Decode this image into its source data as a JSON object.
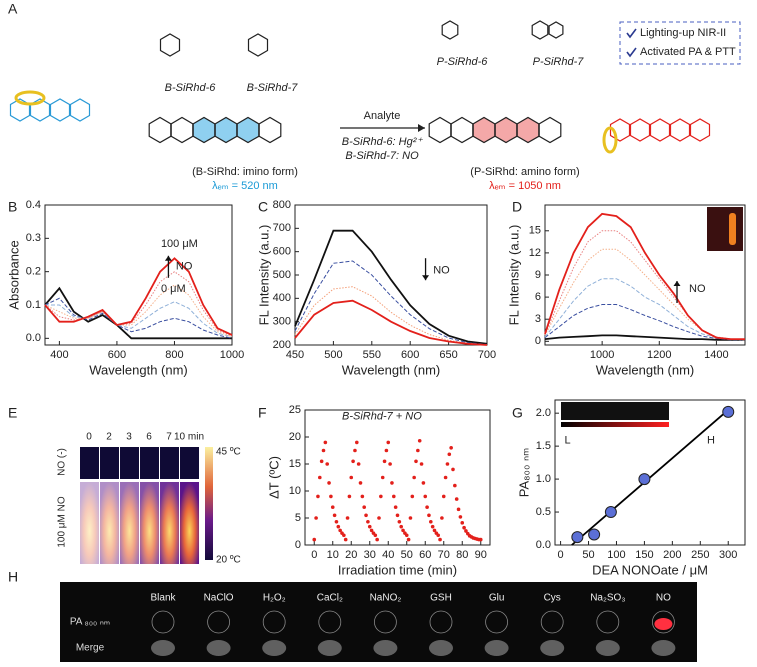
{
  "panel_labels": [
    "A",
    "B",
    "C",
    "D",
    "E",
    "F",
    "G",
    "H"
  ],
  "panel_a": {
    "compounds": [
      "B-SiRhd-6",
      "B-SiRhd-7",
      "P-SiRhd-6",
      "P-SiRhd-7"
    ],
    "features": [
      "Lighting-up NIR-II",
      "Activated PA & PTT"
    ],
    "left_form": "(B-SiRhd: imino form)",
    "left_emission": "λₑₘ = 520 nm",
    "arrow_label": "Analyte",
    "conditions": [
      "B-SiRhd-6: Hg²⁺",
      "B-SiRhd-7: NO"
    ],
    "right_form": "(P-SiRhd: amino form)",
    "right_emission": "λₑₘ = 1050 nm"
  },
  "panel_e": {
    "times": [
      "0",
      "2",
      "3",
      "6",
      "7",
      "10 min"
    ],
    "rows": [
      "NO (-)",
      "100 μM NO"
    ],
    "scale_max": "45 ºC",
    "scale_min": "20 ºC"
  },
  "panel_h": {
    "columns": [
      "Blank",
      "NaClO",
      "H₂O₂",
      "CaCl₂",
      "NaNO₂",
      "GSH",
      "Glu",
      "Cys",
      "Na₂SO₃",
      "NO"
    ],
    "rows": [
      "PA ₈₀₀ ₙₘ",
      "Merge"
    ]
  },
  "chart_data": [
    {
      "type": "line",
      "xlabel": "Wavelength (nm)",
      "ylabel": "Absorbance",
      "xlim": [
        350,
        1000
      ],
      "ylim": [
        -0.02,
        0.4
      ],
      "xticks": [
        400,
        600,
        800,
        1000
      ],
      "yticks": [
        {
          "value": 0,
          "label": "0.0"
        },
        0.1,
        0.2,
        0.3,
        0.4
      ],
      "annotations": [
        "100 μM",
        "NO",
        "0 μM"
      ],
      "x": [
        350,
        400,
        450,
        500,
        550,
        600,
        650,
        700,
        750,
        800,
        850,
        900,
        950,
        1000
      ],
      "series": [
        {
          "color": "#111111",
          "values": [
            0.1,
            0.15,
            0.08,
            0.05,
            0.07,
            0.04,
            0.0,
            0.0,
            0.0,
            0.0,
            0.0,
            0.0,
            0.0,
            0.0
          ]
        },
        {
          "color": "#3a4fa0",
          "style": "dashed",
          "values": [
            0.1,
            0.12,
            0.07,
            0.055,
            0.075,
            0.04,
            0.02,
            0.03,
            0.05,
            0.06,
            0.05,
            0.025,
            0.01,
            0.0
          ]
        },
        {
          "color": "#8fb0d8",
          "style": "dashed",
          "values": [
            0.1,
            0.1,
            0.065,
            0.06,
            0.08,
            0.04,
            0.03,
            0.06,
            0.09,
            0.11,
            0.09,
            0.045,
            0.015,
            0.005
          ]
        },
        {
          "color": "#f4b08a",
          "style": "dotted",
          "values": [
            0.1,
            0.08,
            0.06,
            0.06,
            0.08,
            0.04,
            0.04,
            0.08,
            0.13,
            0.16,
            0.13,
            0.065,
            0.02,
            0.005
          ]
        },
        {
          "color": "#e88080",
          "style": "dotted",
          "values": [
            0.1,
            0.065,
            0.055,
            0.062,
            0.082,
            0.04,
            0.045,
            0.1,
            0.17,
            0.2,
            0.17,
            0.085,
            0.025,
            0.008
          ]
        },
        {
          "color": "#e3201b",
          "values": [
            0.1,
            0.05,
            0.05,
            0.065,
            0.085,
            0.04,
            0.05,
            0.12,
            0.2,
            0.24,
            0.2,
            0.1,
            0.03,
            0.01
          ]
        }
      ]
    },
    {
      "type": "line",
      "xlabel": "Wavelength (nm)",
      "ylabel": "FL Intensity (a.u.)",
      "xlim": [
        450,
        700
      ],
      "ylim": [
        200,
        800
      ],
      "xticks": [
        450,
        500,
        550,
        600,
        650,
        700
      ],
      "yticks": [
        200,
        300,
        400,
        500,
        600,
        700,
        800
      ],
      "annotations": [
        "NO"
      ],
      "x": [
        450,
        475,
        500,
        525,
        550,
        575,
        600,
        625,
        650,
        675,
        700
      ],
      "series": [
        {
          "color": "#111111",
          "values": [
            280,
            480,
            690,
            690,
            600,
            480,
            370,
            290,
            240,
            215,
            205
          ]
        },
        {
          "color": "#3a4fa0",
          "style": "dashed",
          "values": [
            260,
            420,
            550,
            560,
            500,
            410,
            330,
            270,
            230,
            210,
            202
          ]
        },
        {
          "color": "#f4a07a",
          "style": "dotted",
          "values": [
            245,
            370,
            440,
            450,
            410,
            340,
            285,
            245,
            220,
            207,
            201
          ]
        },
        {
          "color": "#e3201b",
          "values": [
            230,
            330,
            380,
            390,
            350,
            300,
            260,
            230,
            215,
            205,
            200
          ]
        }
      ]
    },
    {
      "type": "line",
      "xlabel": "Wavelength (nm)",
      "ylabel": "FL Intensity (a.u.)",
      "xlim": [
        800,
        1500
      ],
      "ylim": [
        -0.5,
        18.5
      ],
      "xticks": [
        1000,
        1200,
        1400
      ],
      "yticks": [
        0,
        3,
        6,
        9,
        12,
        15
      ],
      "annotations": [
        "NO"
      ],
      "x": [
        800,
        850,
        900,
        950,
        1000,
        1050,
        1100,
        1150,
        1200,
        1250,
        1300,
        1350,
        1400,
        1450,
        1500
      ],
      "series": [
        {
          "color": "#111111",
          "values": [
            0.3,
            0.5,
            0.6,
            0.7,
            0.8,
            0.8,
            0.7,
            0.6,
            0.5,
            0.4,
            0.3,
            0.3,
            0.2,
            0.2,
            0.2
          ]
        },
        {
          "color": "#3a4fa0",
          "style": "dashed",
          "values": [
            0.5,
            2,
            3.5,
            4.5,
            5,
            5,
            4.3,
            3.5,
            2.8,
            2,
            1.3,
            0.7,
            0.4,
            0.2,
            0.2
          ]
        },
        {
          "color": "#8fb0d8",
          "style": "dashed",
          "values": [
            0.6,
            3,
            5.5,
            7.5,
            8.5,
            8.5,
            7.5,
            6,
            5,
            3.5,
            2,
            1,
            0.5,
            0.3,
            0.2
          ]
        },
        {
          "color": "#f4b08a",
          "style": "dotted",
          "values": [
            0.8,
            4.5,
            8,
            11,
            12.5,
            12.5,
            11,
            9,
            7,
            5,
            3,
            1.5,
            0.6,
            0.3,
            0.2
          ]
        },
        {
          "color": "#e88080",
          "style": "dotted",
          "values": [
            0.9,
            5.5,
            10,
            13.5,
            15,
            15,
            13.5,
            11,
            8.5,
            6,
            3.5,
            1.5,
            0.6,
            0.3,
            0.2
          ]
        },
        {
          "color": "#e3201b",
          "values": [
            1,
            7,
            12,
            15.5,
            17.3,
            17,
            15.5,
            12,
            9,
            6.5,
            3.5,
            1.5,
            0.5,
            0.3,
            0.3
          ]
        }
      ]
    },
    {
      "type": "scatter",
      "xlabel": "Irradiation time (min)",
      "ylabel": "ΔT (ºC)",
      "xlim": [
        -5,
        95
      ],
      "ylim": [
        0,
        25
      ],
      "xticks": [
        0,
        10,
        20,
        30,
        40,
        50,
        60,
        70,
        80,
        90
      ],
      "yticks": [
        0,
        5,
        10,
        15,
        20,
        25
      ],
      "annotations": [
        "B-SiRhd-7 + NO"
      ],
      "x": [
        0,
        1,
        2,
        3,
        4,
        5,
        6,
        7,
        8,
        9,
        10,
        11,
        12,
        13,
        14,
        15,
        16,
        17,
        18,
        19,
        20,
        21,
        22,
        23,
        24,
        25,
        26,
        27,
        28,
        29,
        30,
        31,
        32,
        33,
        34,
        35,
        36,
        37,
        38,
        39,
        40,
        41,
        42,
        43,
        44,
        45,
        46,
        47,
        48,
        49,
        50,
        51,
        52,
        53,
        54,
        55,
        56,
        57,
        58,
        59,
        60,
        61,
        62,
        63,
        64,
        65,
        66,
        67,
        68,
        69,
        70,
        71,
        72,
        73,
        74,
        75,
        76,
        77,
        78,
        79,
        80,
        81,
        82,
        83,
        84,
        85,
        86,
        87,
        88,
        89,
        90
      ],
      "series": [
        {
          "color": "#e3201b",
          "marker": "circle",
          "values": [
            1,
            5,
            9,
            12.5,
            15.5,
            17.5,
            19,
            15,
            11.5,
            9,
            7,
            5.5,
            4.3,
            3.4,
            2.7,
            2.2,
            1.8,
            1,
            5,
            9,
            12.5,
            15.5,
            17.5,
            19,
            15,
            11.5,
            9,
            7,
            5.5,
            4.3,
            3.4,
            2.7,
            2.2,
            1.8,
            1,
            5,
            9,
            12.5,
            15.5,
            17.5,
            19,
            15,
            11.5,
            9,
            7,
            5.5,
            4.3,
            3.4,
            2.7,
            2.2,
            1.8,
            1,
            5,
            9,
            12.5,
            15.5,
            17.5,
            19.3,
            15,
            11.5,
            9,
            7,
            5.5,
            4.3,
            3.4,
            2.7,
            2.2,
            1.8,
            1,
            5,
            9,
            12.5,
            15,
            16.8,
            18,
            14,
            11,
            8.5,
            6.6,
            5.2,
            4.1,
            3.2,
            2.6,
            2.1,
            1.7,
            1.5,
            1.3,
            1.2,
            1.1,
            1,
            1
          ]
        }
      ]
    },
    {
      "type": "scatter",
      "xlabel": "DEA NONOate / μM",
      "ylabel": "PA₈₀₀ ₙₘ",
      "xlim": [
        -10,
        330
      ],
      "ylim": [
        0,
        2.2
      ],
      "xticks": [
        0,
        50,
        100,
        150,
        200,
        250,
        300
      ],
      "yticks": [
        {
          "value": 0,
          "label": "0.0"
        },
        0.5,
        {
          "value": 1,
          "label": "1.0"
        },
        1.5,
        {
          "value": 2,
          "label": "2.0"
        }
      ],
      "annotations": [
        "L",
        "H"
      ],
      "x": [
        30,
        60,
        90,
        150,
        300
      ],
      "series": [
        {
          "color": "#000000",
          "x": [
            20,
            300
          ],
          "values": [
            0.0,
            2.05
          ]
        },
        {
          "color": "#5b6fd6",
          "marker": "circle",
          "values": [
            0.12,
            0.16,
            0.5,
            1.0,
            2.02
          ]
        }
      ]
    }
  ]
}
